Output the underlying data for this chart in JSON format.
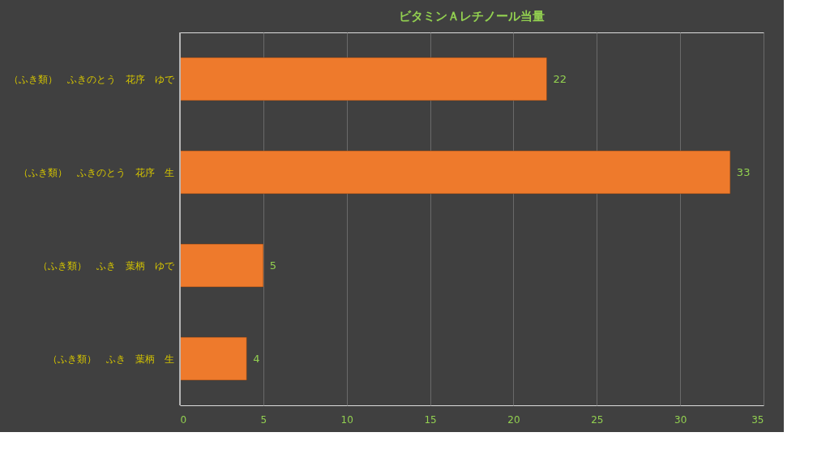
{
  "chart_data": {
    "type": "bar",
    "orientation": "horizontal",
    "title": "ビタミンＡレチノール当量",
    "categories": [
      "（ふき類）　ふきのとう　花序　ゆで",
      "（ふき類）　ふきのとう　花序　生",
      "（ふき類）　ふき　葉柄　ゆで",
      "（ふき類）　ふき　葉柄　生"
    ],
    "values": [
      22,
      33,
      5,
      4
    ],
    "color": "#ee7a2c",
    "xlim": [
      0,
      35
    ],
    "xticks": [
      0,
      5,
      10,
      15,
      20,
      25,
      30,
      35
    ],
    "grid": "x",
    "data_labels": true
  }
}
